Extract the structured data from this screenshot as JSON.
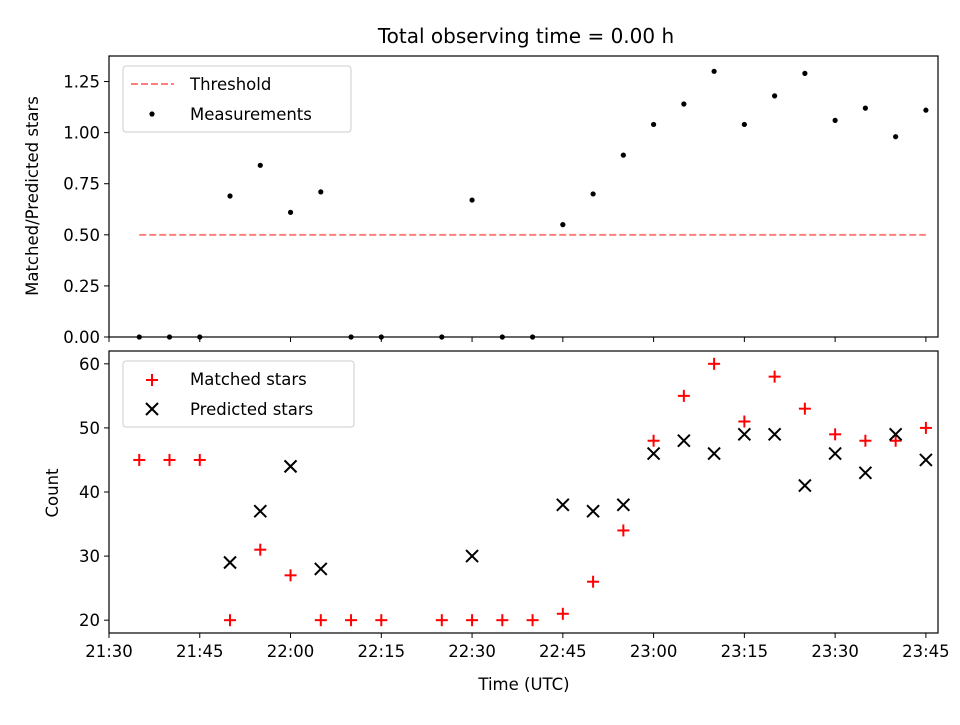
{
  "chart_data": [
    {
      "type": "scatter",
      "title": "Total observing time = 0.00 h",
      "xlabel": "",
      "ylabel": "Matched/Predicted stars",
      "ylim": [
        0,
        1.375
      ],
      "yticks": [
        "0.00",
        "0.25",
        "0.50",
        "0.75",
        "1.00",
        "1.25"
      ],
      "legend": {
        "placement": "top-left",
        "entries": [
          "Threshold",
          "Measurements"
        ]
      },
      "threshold": {
        "name": "Threshold",
        "value": 0.5,
        "x_start": "21:35",
        "x_end": "23:45",
        "color": "#ff7f7f"
      },
      "series": [
        {
          "name": "Measurements",
          "color": "#000000",
          "points": [
            [
              "21:35",
              0
            ],
            [
              "21:40",
              0
            ],
            [
              "21:45",
              0
            ],
            [
              "21:50",
              0.69
            ],
            [
              "21:55",
              0.84
            ],
            [
              "22:00",
              0.61
            ],
            [
              "22:05",
              0.71
            ],
            [
              "22:10",
              0
            ],
            [
              "22:15",
              0
            ],
            [
              "22:25",
              0
            ],
            [
              "22:30",
              0.67
            ],
            [
              "22:35",
              0
            ],
            [
              "22:40",
              0
            ],
            [
              "22:45",
              0.55
            ],
            [
              "22:50",
              0.7
            ],
            [
              "22:55",
              0.89
            ],
            [
              "23:00",
              1.04
            ],
            [
              "23:05",
              1.14
            ],
            [
              "23:10",
              1.3
            ],
            [
              "23:15",
              1.04
            ],
            [
              "23:20",
              1.18
            ],
            [
              "23:25",
              1.29
            ],
            [
              "23:30",
              1.06
            ],
            [
              "23:35",
              1.12
            ],
            [
              "23:40",
              0.98
            ],
            [
              "23:45",
              1.11
            ]
          ]
        }
      ]
    },
    {
      "type": "scatter",
      "title": "",
      "xlabel": "Time (UTC)",
      "ylabel": "Count",
      "ylim": [
        18,
        62
      ],
      "yticks": [
        "20",
        "30",
        "40",
        "50",
        "60"
      ],
      "xticks": [
        "21:30",
        "21:45",
        "22:00",
        "22:15",
        "22:30",
        "22:45",
        "23:00",
        "23:15",
        "23:30",
        "23:45"
      ],
      "xlim": [
        "21:30",
        "23:47"
      ],
      "legend": {
        "placement": "top-left",
        "entries": [
          "Matched stars",
          "Predicted stars"
        ]
      },
      "series": [
        {
          "name": "Matched stars",
          "marker": "plus",
          "color": "#ff0000",
          "points": [
            [
              "21:35",
              45
            ],
            [
              "21:40",
              45
            ],
            [
              "21:45",
              45
            ],
            [
              "21:50",
              20
            ],
            [
              "21:55",
              31
            ],
            [
              "22:00",
              27
            ],
            [
              "22:05",
              20
            ],
            [
              "22:10",
              20
            ],
            [
              "22:15",
              20
            ],
            [
              "22:25",
              20
            ],
            [
              "22:30",
              20
            ],
            [
              "22:35",
              20
            ],
            [
              "22:40",
              20
            ],
            [
              "22:45",
              21
            ],
            [
              "22:50",
              26
            ],
            [
              "22:55",
              34
            ],
            [
              "23:00",
              48
            ],
            [
              "23:05",
              55
            ],
            [
              "23:10",
              60
            ],
            [
              "23:15",
              51
            ],
            [
              "23:20",
              58
            ],
            [
              "23:25",
              53
            ],
            [
              "23:30",
              49
            ],
            [
              "23:35",
              48
            ],
            [
              "23:40",
              48
            ],
            [
              "23:45",
              50
            ]
          ]
        },
        {
          "name": "Predicted stars",
          "marker": "x",
          "color": "#000000",
          "points": [
            [
              "21:50",
              29
            ],
            [
              "21:55",
              37
            ],
            [
              "22:00",
              44
            ],
            [
              "22:05",
              28
            ],
            [
              "22:30",
              30
            ],
            [
              "22:45",
              38
            ],
            [
              "22:50",
              37
            ],
            [
              "22:55",
              38
            ],
            [
              "23:00",
              46
            ],
            [
              "23:05",
              48
            ],
            [
              "23:10",
              46
            ],
            [
              "23:15",
              49
            ],
            [
              "23:20",
              49
            ],
            [
              "23:25",
              41
            ],
            [
              "23:30",
              46
            ],
            [
              "23:35",
              43
            ],
            [
              "23:40",
              49
            ],
            [
              "23:45",
              45
            ]
          ]
        }
      ]
    }
  ]
}
